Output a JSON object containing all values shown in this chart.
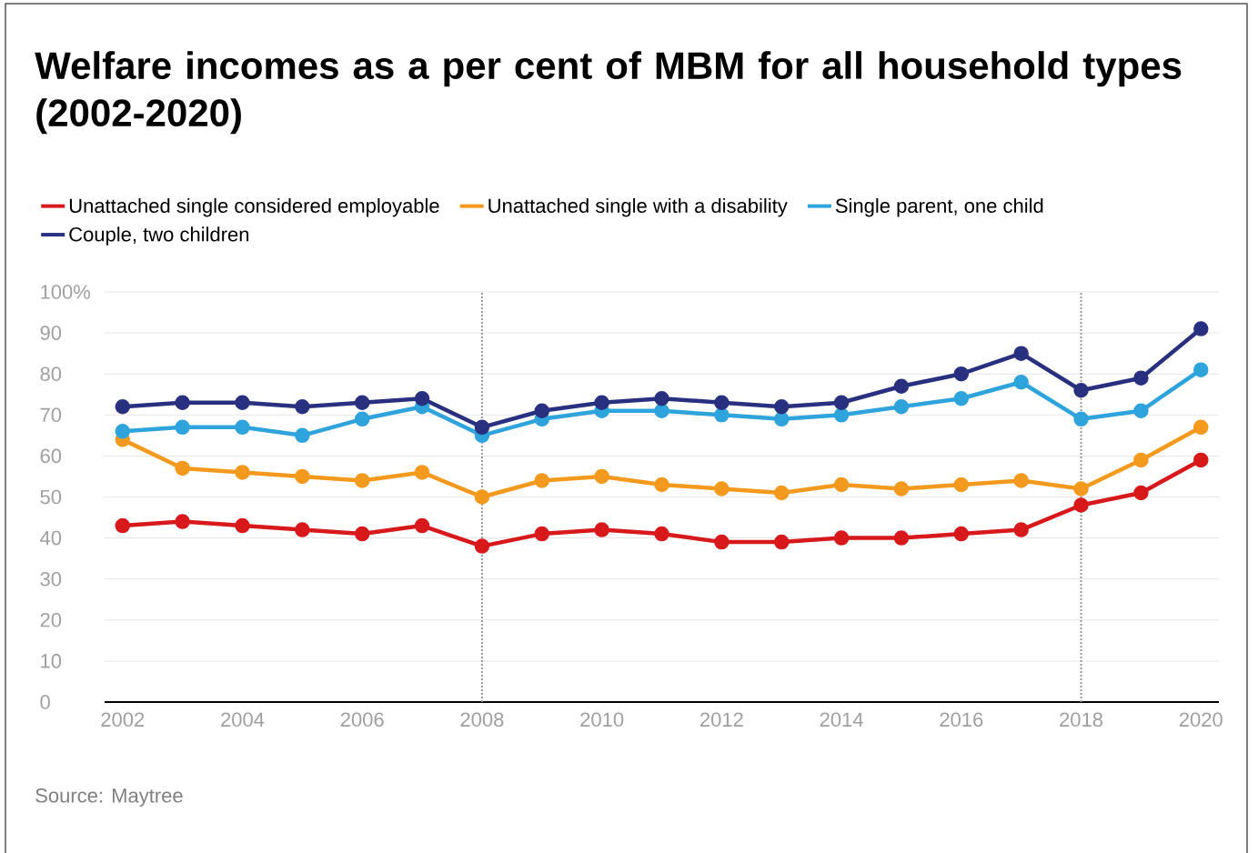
{
  "chart_data": {
    "type": "line",
    "title": "Welfare incomes as a per cent of MBM for all household types (2002-2020)",
    "x": [
      2002,
      2003,
      2004,
      2005,
      2006,
      2007,
      2008,
      2009,
      2010,
      2011,
      2012,
      2013,
      2014,
      2015,
      2016,
      2017,
      2018,
      2019,
      2020
    ],
    "series": [
      {
        "name": "Unattached single considered employable",
        "color": "#d7191c",
        "values": [
          43,
          44,
          43,
          42,
          41,
          43,
          38,
          41,
          42,
          41,
          39,
          39,
          40,
          40,
          41,
          42,
          48,
          51,
          59
        ]
      },
      {
        "name": "Unattached single with a disability",
        "color": "#f39a1e",
        "values": [
          64,
          57,
          56,
          55,
          54,
          56,
          50,
          54,
          55,
          53,
          52,
          51,
          53,
          52,
          53,
          54,
          52,
          59,
          67
        ]
      },
      {
        "name": "Single parent, one child",
        "color": "#2ea3dc",
        "values": [
          66,
          67,
          67,
          65,
          69,
          72,
          65,
          69,
          71,
          71,
          70,
          69,
          70,
          72,
          74,
          78,
          69,
          71,
          81
        ]
      },
      {
        "name": "Couple, two children",
        "color": "#28307f",
        "values": [
          72,
          73,
          73,
          72,
          73,
          74,
          67,
          71,
          73,
          74,
          73,
          72,
          73,
          77,
          80,
          85,
          76,
          79,
          91
        ]
      }
    ],
    "xlim": [
      2001.7,
      2020.3
    ],
    "xticks": [
      2002,
      2004,
      2006,
      2008,
      2010,
      2012,
      2014,
      2016,
      2018,
      2020
    ],
    "ylim": [
      0,
      100
    ],
    "yticks": [
      0,
      10,
      20,
      30,
      40,
      50,
      60,
      70,
      80,
      90,
      {
        "value": 100,
        "label": "100%"
      }
    ],
    "grid": "y",
    "legend": "top",
    "marker": "circle",
    "line_style": "solid",
    "ref_lines": [
      {
        "axis": "x",
        "value": 2008,
        "line_style": "dotted",
        "color": "#999999"
      },
      {
        "axis": "x",
        "value": 2018,
        "line_style": "dotted",
        "color": "#999999"
      }
    ],
    "annotations": [
      "Source: Maytree"
    ]
  }
}
